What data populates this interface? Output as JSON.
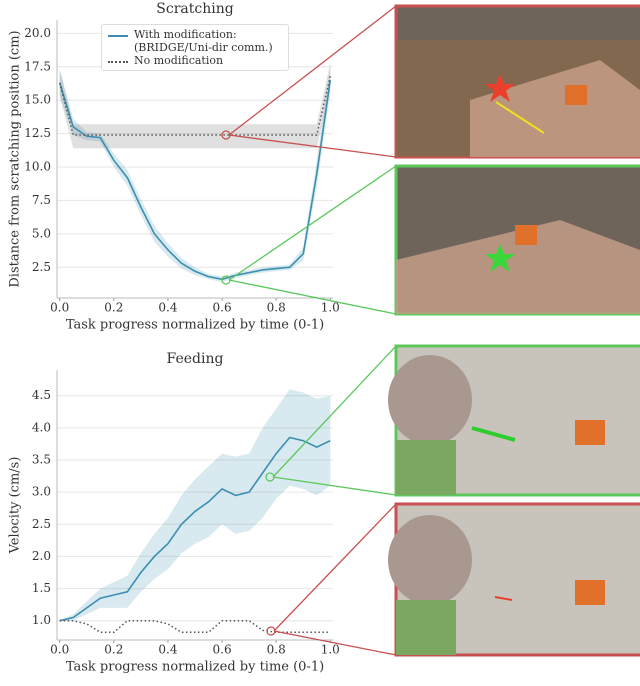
{
  "chart_data": [
    {
      "type": "line",
      "title": "Scratching",
      "xlabel": "Task progress normalized by time (0-1)",
      "ylabel": "Distance from scratching position (cm)",
      "x": [
        0,
        0.05,
        0.1,
        0.15,
        0.2,
        0.25,
        0.3,
        0.35,
        0.4,
        0.45,
        0.5,
        0.55,
        0.6,
        0.65,
        0.7,
        0.75,
        0.8,
        0.85,
        0.9,
        0.95,
        1.0
      ],
      "series": [
        {
          "name": "With modification:\n(BRIDGE/Uni-dir comm.)",
          "color": "#3a8fb0",
          "dash": "solid",
          "values": [
            16.3,
            13.0,
            12.3,
            12.2,
            10.5,
            9.2,
            7.0,
            5.0,
            3.8,
            2.8,
            2.2,
            1.8,
            1.6,
            1.9,
            2.1,
            2.3,
            2.4,
            2.5,
            3.5,
            9.5,
            16.5
          ],
          "lower": [
            15.3,
            12.4,
            12.0,
            11.9,
            10.0,
            8.6,
            6.4,
            4.4,
            3.3,
            2.4,
            1.9,
            1.6,
            1.4,
            1.7,
            1.9,
            2.1,
            2.2,
            2.3,
            3.0,
            8.5,
            15.5
          ],
          "upper": [
            17.3,
            13.6,
            12.6,
            12.5,
            11.0,
            9.8,
            7.6,
            5.6,
            4.3,
            3.2,
            2.5,
            2.0,
            1.8,
            2.1,
            2.3,
            2.5,
            2.6,
            2.7,
            4.0,
            10.5,
            17.5
          ]
        },
        {
          "name": "No modification",
          "color": "#555555",
          "dash": "dotted",
          "values": [
            16.3,
            12.4,
            12.4,
            12.4,
            12.4,
            12.4,
            12.4,
            12.4,
            12.4,
            12.4,
            12.4,
            12.4,
            12.4,
            12.4,
            12.4,
            12.4,
            12.4,
            12.4,
            12.4,
            12.4,
            16.8
          ],
          "lower": [
            15.3,
            11.4,
            11.4,
            11.4,
            11.4,
            11.4,
            11.4,
            11.4,
            11.4,
            11.4,
            11.4,
            11.4,
            11.4,
            11.4,
            11.4,
            11.4,
            11.4,
            11.4,
            11.4,
            11.4,
            15.8
          ],
          "upper": [
            17.3,
            13.2,
            13.2,
            13.2,
            13.2,
            13.2,
            13.2,
            13.2,
            13.2,
            13.2,
            13.2,
            13.2,
            13.2,
            13.2,
            13.2,
            13.2,
            13.2,
            13.2,
            13.2,
            13.2,
            17.8
          ]
        }
      ],
      "xlim": [
        -0.01,
        1.01
      ],
      "ylim": [
        0.2,
        21
      ],
      "xticks": [
        {
          "value": 0,
          "label": "0.0"
        },
        0.2,
        0.4,
        0.6,
        0.8,
        {
          "value": 1,
          "label": "1.0"
        }
      ],
      "yticks": [
        2.5,
        {
          "value": 5,
          "label": "5.0"
        },
        7.5,
        {
          "value": 10,
          "label": "10.0"
        },
        12.5,
        {
          "value": 15,
          "label": "15.0"
        },
        17.5,
        {
          "value": 20,
          "label": "20.0"
        }
      ],
      "grid": true,
      "legend": "upper center"
    },
    {
      "type": "line",
      "title": "Feeding",
      "xlabel": "Task progress normalized by time (0-1)",
      "ylabel": "Velocity (cm/s)",
      "x": [
        0,
        0.05,
        0.1,
        0.15,
        0.2,
        0.25,
        0.3,
        0.35,
        0.4,
        0.45,
        0.5,
        0.55,
        0.6,
        0.65,
        0.7,
        0.75,
        0.8,
        0.85,
        0.9,
        0.95,
        1.0
      ],
      "series": [
        {
          "color": "#3a8fb0",
          "dash": "solid",
          "values": [
            1.0,
            1.05,
            1.2,
            1.35,
            1.4,
            1.45,
            1.75,
            2.0,
            2.2,
            2.5,
            2.7,
            2.85,
            3.05,
            2.95,
            3.0,
            3.3,
            3.6,
            3.85,
            3.8,
            3.7,
            3.8
          ],
          "lower": [
            1.0,
            1.0,
            1.1,
            1.2,
            1.2,
            1.2,
            1.45,
            1.65,
            1.8,
            2.05,
            2.2,
            2.3,
            2.5,
            2.35,
            2.4,
            2.6,
            2.9,
            3.1,
            3.05,
            2.95,
            3.1
          ],
          "upper": [
            1.0,
            1.1,
            1.3,
            1.5,
            1.6,
            1.7,
            2.05,
            2.35,
            2.6,
            2.95,
            3.2,
            3.4,
            3.6,
            3.55,
            3.6,
            4.0,
            4.3,
            4.6,
            4.55,
            4.45,
            4.5
          ]
        },
        {
          "color": "#555555",
          "dash": "dotted",
          "values": [
            1.0,
            1.0,
            0.95,
            0.82,
            0.82,
            1.0,
            1.0,
            1.0,
            0.95,
            0.82,
            0.82,
            0.82,
            1.0,
            1.0,
            1.0,
            0.85,
            0.82,
            0.82,
            0.82,
            0.82,
            0.82
          ]
        }
      ],
      "xlim": [
        -0.01,
        1.01
      ],
      "ylim": [
        0.7,
        4.9
      ],
      "xticks": [
        {
          "value": 0,
          "label": "0.0"
        },
        0.2,
        0.4,
        0.6,
        0.8,
        {
          "value": 1,
          "label": "1.0"
        }
      ],
      "yticks": [
        {
          "value": 1,
          "label": "1.0"
        },
        1.5,
        {
          "value": 2,
          "label": "2.0"
        },
        2.5,
        {
          "value": 3,
          "label": "3.0"
        },
        3.5,
        {
          "value": 4,
          "label": "4.0"
        },
        4.5
      ],
      "grid": true
    }
  ]
}
